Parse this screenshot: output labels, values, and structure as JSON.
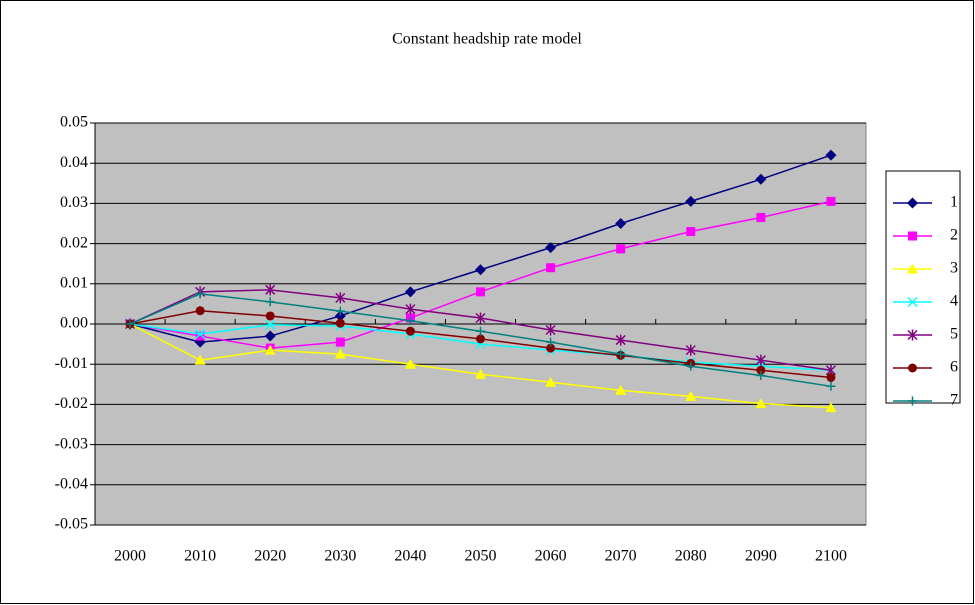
{
  "chart_data": {
    "type": "line",
    "title": "Constant headship rate model",
    "categories": [
      "2000",
      "2010",
      "2020",
      "2030",
      "2040",
      "2050",
      "2060",
      "2070",
      "2080",
      "2090",
      "2100"
    ],
    "ylim": [
      -0.05,
      0.05
    ],
    "yticks": [
      0.05,
      0.04,
      0.03,
      0.02,
      0.01,
      {
        "value": 0,
        "label": "0.00"
      },
      -0.01,
      -0.02,
      -0.03,
      -0.04,
      -0.05
    ],
    "grid": true,
    "legend": "right",
    "series": [
      {
        "name": "1",
        "color": "#000080",
        "marker": "diamond",
        "values": [
          0,
          -0.0045,
          -0.003,
          0.002,
          0.008,
          0.0135,
          0.019,
          0.025,
          0.0305,
          0.036,
          0.042
        ]
      },
      {
        "name": "2",
        "color": "#ff00ff",
        "marker": "square",
        "values": [
          0,
          -0.003,
          -0.006,
          -0.0045,
          0.0015,
          0.008,
          0.014,
          0.0187,
          0.023,
          0.0265,
          0.0305
        ]
      },
      {
        "name": "3",
        "color": "#ffff00",
        "marker": "triangle",
        "values": [
          0,
          -0.009,
          -0.0065,
          -0.0075,
          -0.01,
          -0.0125,
          -0.0145,
          -0.0165,
          -0.018,
          -0.0198,
          -0.0208
        ]
      },
      {
        "name": "4",
        "color": "#00ffff",
        "marker": "x",
        "values": [
          0,
          -0.0025,
          -0.0002,
          -0.0005,
          -0.0025,
          -0.005,
          -0.0065,
          -0.0078,
          -0.0095,
          -0.0105,
          -0.0115
        ]
      },
      {
        "name": "5",
        "color": "#800080",
        "marker": "star",
        "values": [
          0,
          0.008,
          0.0085,
          0.0065,
          0.0037,
          0.0015,
          -0.0015,
          -0.004,
          -0.0065,
          -0.009,
          -0.0115
        ]
      },
      {
        "name": "6",
        "color": "#800000",
        "marker": "circle",
        "values": [
          0,
          0.0033,
          0.002,
          0.0002,
          -0.0018,
          -0.0037,
          -0.006,
          -0.0078,
          -0.0098,
          -0.0115,
          -0.0133
        ]
      },
      {
        "name": "7",
        "color": "#008080",
        "marker": "plus",
        "values": [
          0,
          0.0075,
          0.0055,
          0.0032,
          0.0008,
          -0.0018,
          -0.0045,
          -0.0075,
          -0.0105,
          -0.0128,
          -0.0155
        ]
      }
    ]
  }
}
